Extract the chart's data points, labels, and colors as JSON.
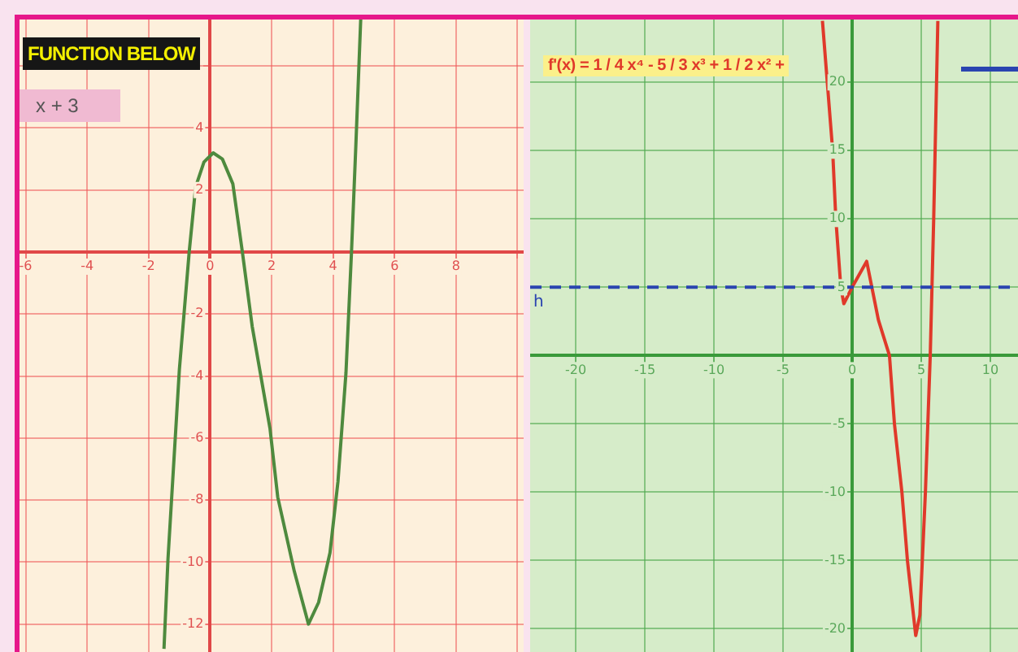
{
  "chart_data": [
    {
      "type": "line",
      "marker": "none",
      "grid": true,
      "legend": false,
      "xlim": [
        -6.2,
        10.2
      ],
      "ylim": [
        -12.9,
        7.5
      ],
      "xticks": [
        -6,
        -4,
        -2,
        0,
        2,
        4,
        6,
        8,
        {
          "value": 10,
          "label": null
        }
      ],
      "yticks": [
        -12,
        -10,
        -8,
        -6,
        -4,
        -2,
        2,
        4,
        {
          "value": 6,
          "label": null
        }
      ],
      "annotations": [
        "FUNCTION BELOW",
        "x + 3"
      ],
      "series": [
        {
          "color": "#4e8a3e",
          "x": [
            -1.5,
            -1.37,
            -1.0,
            -0.68,
            -0.47,
            -0.2,
            0.1,
            0.4,
            0.74,
            1.05,
            1.37,
            1.95,
            2.2,
            2.74,
            3.2,
            3.53,
            3.9,
            4.16,
            4.42,
            4.6,
            4.74,
            4.9
          ],
          "values": [
            -12.8,
            -9.9,
            -3.8,
            0,
            2.1,
            2.9,
            3.2,
            3.0,
            2.2,
            0,
            -2.4,
            -5.7,
            -7.9,
            -10.3,
            -12,
            -11.3,
            -9.7,
            -7.4,
            -3.9,
            0,
            3.4,
            7.5
          ]
        }
      ]
    },
    {
      "type": "line",
      "marker": "none",
      "grid": true,
      "legend": false,
      "xlim": [
        -23.3,
        12
      ],
      "ylim": [
        -21.7,
        24.6
      ],
      "xticks": [
        -20,
        -15,
        -10,
        -5,
        0,
        5,
        10
      ],
      "yticks": [
        -20,
        -15,
        -10,
        -5,
        5,
        10,
        15,
        20
      ],
      "annotations": [
        "f'(x) = 1 / 4 x⁴ - 5 / 3 x³ + 1 / 2 x² +"
      ],
      "ref_lines": [
        {
          "axis": "y",
          "value": 5,
          "label": "h",
          "color": "#2a44b0",
          "line_style": "dashed"
        }
      ],
      "series": [
        {
          "color": "#e0392a",
          "x": [
            -2.15,
            -1.41,
            -1.18,
            -0.82,
            -0.6,
            0,
            1.05,
            1.9,
            2.7,
            3.06,
            3.6,
            4.0,
            4.6,
            4.9,
            5.3,
            5.65,
            5.9,
            6.2
          ],
          "values": [
            24.5,
            15,
            10,
            5,
            3.8,
            5,
            6.9,
            2.6,
            0,
            -5,
            -10,
            -15,
            -20.5,
            -19,
            -10,
            0,
            10,
            24.5
          ]
        }
      ]
    }
  ]
}
